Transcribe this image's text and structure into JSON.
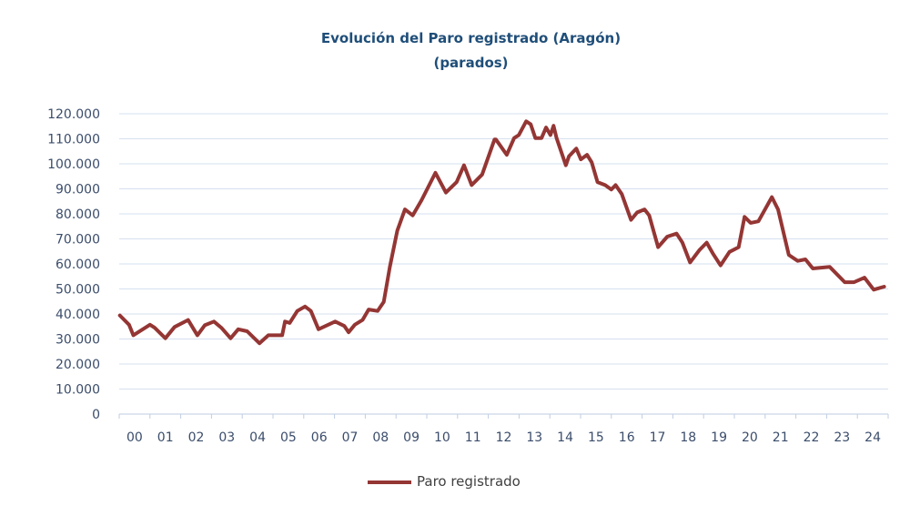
{
  "chart_data": {
    "type": "line",
    "title": "Evolución del Paro registrado (Aragón)",
    "subtitle": "(parados)",
    "xlabel": "",
    "ylabel": "",
    "xlim": [
      2000,
      2025
    ],
    "ylim": [
      0,
      120000
    ],
    "y_ticks": [
      "0",
      "10.000",
      "20.000",
      "30.000",
      "40.000",
      "50.000",
      "60.000",
      "70.000",
      "80.000",
      "90.000",
      "100.000",
      "110.000",
      "120.000"
    ],
    "x_tick_labels": [
      "00",
      "01",
      "02",
      "03",
      "04",
      "05",
      "06",
      "07",
      "08",
      "09",
      "10",
      "11",
      "12",
      "13",
      "14",
      "15",
      "16",
      "17",
      "18",
      "19",
      "20",
      "21",
      "22",
      "23",
      "24"
    ],
    "grid": true,
    "legend_position": "bottom",
    "colors": {
      "line": "#943634",
      "grid": "#d6e0ef",
      "title": "#1f4e79"
    },
    "series": [
      {
        "name": "Paro registrado",
        "points": [
          [
            2000.02,
            39400
          ],
          [
            2000.32,
            35700
          ],
          [
            2000.46,
            31500
          ],
          [
            2001.0,
            35700
          ],
          [
            2001.15,
            34500
          ],
          [
            2001.5,
            30300
          ],
          [
            2001.8,
            34800
          ],
          [
            2002.24,
            37600
          ],
          [
            2002.54,
            31500
          ],
          [
            2002.78,
            35500
          ],
          [
            2003.08,
            37000
          ],
          [
            2003.32,
            34500
          ],
          [
            2003.62,
            30300
          ],
          [
            2003.87,
            33900
          ],
          [
            2004.16,
            33100
          ],
          [
            2004.56,
            28300
          ],
          [
            2004.85,
            31500
          ],
          [
            2005.05,
            31500
          ],
          [
            2005.3,
            31500
          ],
          [
            2005.39,
            37000
          ],
          [
            2005.54,
            36400
          ],
          [
            2005.79,
            41200
          ],
          [
            2006.04,
            43000
          ],
          [
            2006.23,
            41200
          ],
          [
            2006.48,
            33900
          ],
          [
            2007.02,
            37000
          ],
          [
            2007.32,
            35200
          ],
          [
            2007.46,
            32700
          ],
          [
            2007.66,
            35700
          ],
          [
            2007.91,
            37600
          ],
          [
            2008.11,
            41800
          ],
          [
            2008.4,
            41200
          ],
          [
            2008.6,
            44800
          ],
          [
            2008.8,
            58800
          ],
          [
            2009.04,
            73300
          ],
          [
            2009.29,
            81800
          ],
          [
            2009.54,
            79400
          ],
          [
            2009.83,
            85500
          ],
          [
            2010.28,
            96400
          ],
          [
            2010.62,
            88500
          ],
          [
            2010.97,
            92700
          ],
          [
            2011.21,
            99400
          ],
          [
            2011.46,
            91500
          ],
          [
            2011.8,
            95700
          ],
          [
            2012.2,
            109700
          ],
          [
            2012.25,
            109700
          ],
          [
            2012.6,
            103600
          ],
          [
            2012.84,
            110300
          ],
          [
            2012.99,
            111500
          ],
          [
            2013.23,
            117000
          ],
          [
            2013.38,
            115800
          ],
          [
            2013.53,
            110300
          ],
          [
            2013.73,
            110300
          ],
          [
            2013.88,
            114500
          ],
          [
            2014.02,
            111500
          ],
          [
            2014.12,
            115200
          ],
          [
            2014.22,
            110300
          ],
          [
            2014.52,
            99400
          ],
          [
            2014.62,
            103000
          ],
          [
            2014.86,
            106100
          ],
          [
            2015.01,
            101800
          ],
          [
            2015.21,
            103600
          ],
          [
            2015.36,
            100600
          ],
          [
            2015.55,
            92700
          ],
          [
            2015.8,
            91500
          ],
          [
            2016.0,
            89700
          ],
          [
            2016.14,
            91500
          ],
          [
            2016.34,
            87900
          ],
          [
            2016.64,
            77600
          ],
          [
            2016.84,
            80600
          ],
          [
            2017.08,
            81800
          ],
          [
            2017.23,
            79400
          ],
          [
            2017.52,
            66700
          ],
          [
            2017.82,
            70900
          ],
          [
            2018.12,
            72100
          ],
          [
            2018.31,
            68500
          ],
          [
            2018.56,
            60600
          ],
          [
            2018.86,
            65500
          ],
          [
            2019.1,
            68500
          ],
          [
            2019.3,
            64200
          ],
          [
            2019.55,
            59400
          ],
          [
            2019.84,
            64800
          ],
          [
            2020.14,
            66700
          ],
          [
            2020.33,
            78800
          ],
          [
            2020.53,
            76400
          ],
          [
            2020.78,
            77000
          ],
          [
            2021.22,
            86700
          ],
          [
            2021.42,
            81800
          ],
          [
            2021.77,
            63600
          ],
          [
            2022.06,
            61200
          ],
          [
            2022.31,
            61800
          ],
          [
            2022.55,
            58200
          ],
          [
            2023.1,
            58800
          ],
          [
            2023.59,
            52700
          ],
          [
            2023.89,
            52700
          ],
          [
            2024.23,
            54500
          ],
          [
            2024.53,
            49700
          ],
          [
            2024.87,
            50900
          ]
        ]
      }
    ]
  }
}
